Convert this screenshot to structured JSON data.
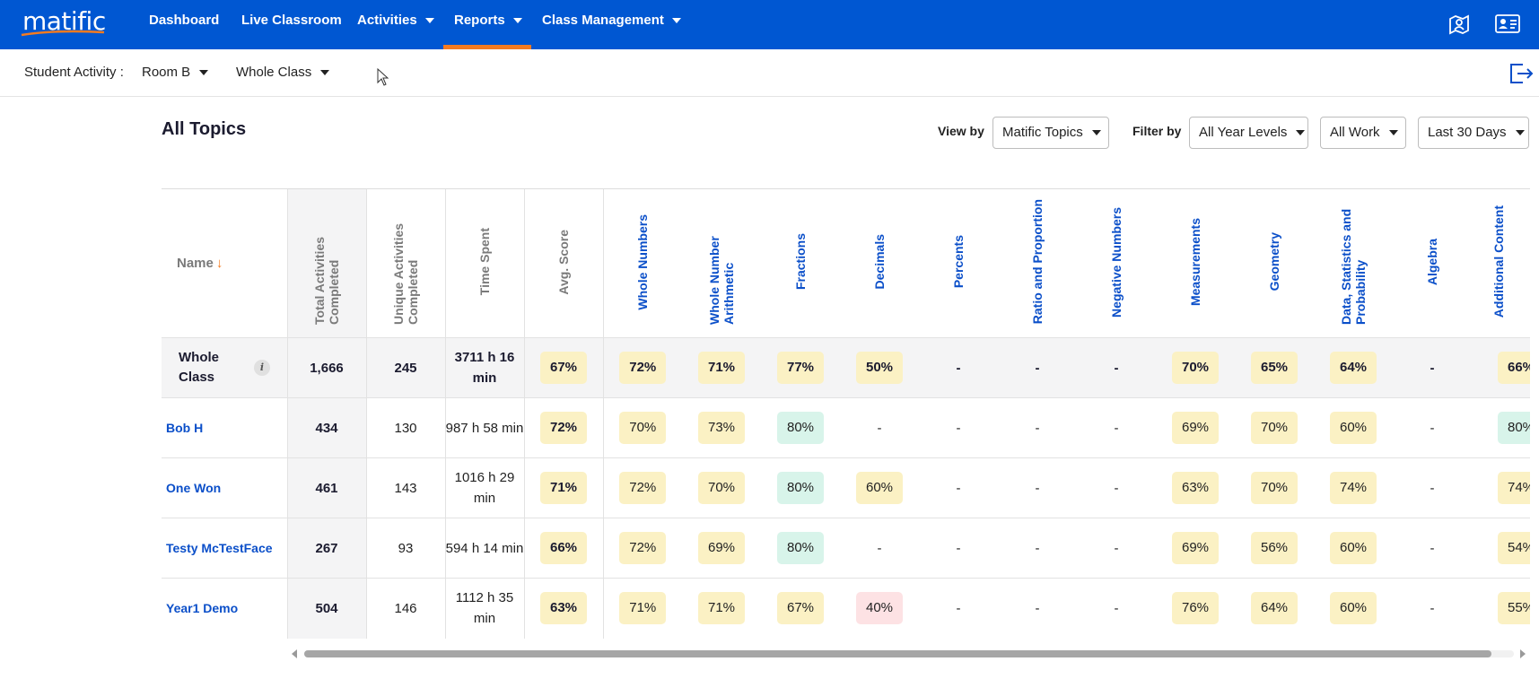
{
  "app": {
    "logo": "matific"
  },
  "nav": {
    "items": [
      {
        "label": "Dashboard"
      },
      {
        "label": "Live Classroom"
      },
      {
        "label": "Activities"
      },
      {
        "label": "Reports"
      },
      {
        "label": "Class Management"
      }
    ],
    "active": "Reports"
  },
  "subbar": {
    "label": "Student Activity :",
    "room": "Room B",
    "group": "Whole Class"
  },
  "page": {
    "title": "All Topics"
  },
  "filters": {
    "view_by_label": "View by",
    "view_by_value": "Matific Topics",
    "filter_by_label": "Filter by",
    "year_levels": "All Year Levels",
    "work": "All Work",
    "period": "Last 30 Days"
  },
  "table": {
    "name_header": "Name",
    "sort_arrow": "↓",
    "columns": [
      "Total Activities Completed",
      "Unique Activities Completed",
      "Time Spent",
      "Avg. Score",
      "Whole Numbers",
      "Whole Number Arithmetic",
      "Fractions",
      "Decimals",
      "Percents",
      "Ratio and Proportion",
      "Negative Numbers",
      "Measurements",
      "Geometry",
      "Data, Statistics and Probability",
      "Algebra",
      "Additional Content"
    ],
    "whole_class": {
      "name": "Whole Class",
      "info": "i",
      "total": "1,666",
      "unique": "245",
      "time": "3711 h 16 min",
      "avg": "67%",
      "topics": [
        "72%",
        "71%",
        "77%",
        "50%",
        "-",
        "-",
        "-",
        "70%",
        "65%",
        "64%",
        "-",
        "66%"
      ]
    },
    "rows": [
      {
        "name": "Bob H",
        "total": "434",
        "unique": "130",
        "time": "987 h 58 min",
        "avg": "72%",
        "topics": [
          "70%",
          "73%",
          "80%",
          "-",
          "-",
          "-",
          "-",
          "69%",
          "70%",
          "60%",
          "-",
          "80%"
        ]
      },
      {
        "name": "One Won",
        "total": "461",
        "unique": "143",
        "time": "1016 h 29 min",
        "avg": "71%",
        "topics": [
          "72%",
          "70%",
          "80%",
          "60%",
          "-",
          "-",
          "-",
          "63%",
          "70%",
          "74%",
          "-",
          "74%"
        ]
      },
      {
        "name": "Testy McTestFace",
        "total": "267",
        "unique": "93",
        "time": "594 h 14 min",
        "avg": "66%",
        "topics": [
          "72%",
          "69%",
          "80%",
          "-",
          "-",
          "-",
          "-",
          "69%",
          "56%",
          "60%",
          "-",
          "54%"
        ]
      },
      {
        "name": "Year1 Demo",
        "total": "504",
        "unique": "146",
        "time": "1112 h 35 min",
        "avg": "63%",
        "topics": [
          "71%",
          "71%",
          "67%",
          "40%",
          "-",
          "-",
          "-",
          "76%",
          "64%",
          "60%",
          "-",
          "55%"
        ]
      }
    ]
  },
  "colors": {
    "brand": "#0057d2",
    "accent": "#f47b20",
    "score_mid": "#fbf1c4",
    "score_high": "#d8f4ea",
    "score_low": "#fde2e4"
  },
  "icons": {
    "top_right": [
      "map-users-icon",
      "id-card-icon"
    ],
    "export": "export-icon"
  }
}
